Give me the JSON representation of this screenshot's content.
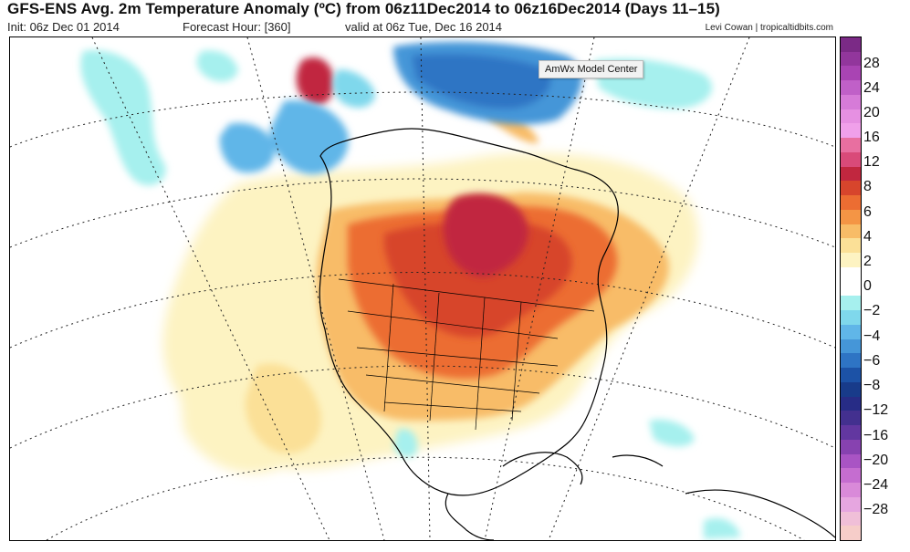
{
  "header": {
    "title": "GFS-ENS Avg. 2m Temperature Anomaly (ºC) from 06z11Dec2014 to 06z16Dec2014 (Days 11–15)",
    "init": "Init: 06z Dec 01 2014",
    "forecast_hour": "Forecast Hour: [360]",
    "valid": "valid at 06z Tue, Dec 16 2014",
    "credit": "Levi Cowan | tropicaltidbits.com"
  },
  "tooltip": {
    "text": "AmWx Model Center"
  },
  "map": {
    "region": "North America",
    "variable": "2m temperature anomaly",
    "units": "ºC"
  },
  "colorbar": {
    "labels": [
      "28",
      "24",
      "20",
      "16",
      "12",
      "8",
      "6",
      "4",
      "2",
      "0",
      "−2",
      "−4",
      "−6",
      "−8",
      "−12",
      "−16",
      "−20",
      "−24",
      "−28"
    ],
    "colors": [
      "#7b2a86",
      "#92369c",
      "#a944b3",
      "#c060c8",
      "#d67bd8",
      "#e690e2",
      "#f0a0ea",
      "#e86fa0",
      "#d94a79",
      "#c1273f",
      "#d7452c",
      "#ec6d32",
      "#f49545",
      "#f8bc67",
      "#fbe097",
      "#fdf3c2",
      "#ffffff",
      "#ffffff",
      "#a6f0ee",
      "#7fd8ec",
      "#60b6e8",
      "#4596d8",
      "#2e74c4",
      "#1c52a6",
      "#183b8a",
      "#272c86",
      "#43308f",
      "#6237a0",
      "#8742b0",
      "#a954c4",
      "#c56dd0",
      "#d98ad9",
      "#e6a6e0",
      "#f0bfd8",
      "#f6cdc9"
    ]
  },
  "regions": [
    {
      "name": "warm-core-central-canada",
      "anomaly": "8-12",
      "color": "#c1273f"
    },
    {
      "name": "cold-greenland",
      "anomaly": "-2 to -6",
      "color": "#4596d8"
    },
    {
      "name": "cold-alaska",
      "anomaly": "-2 to -6",
      "color": "#4596d8"
    },
    {
      "name": "warm-alaska-north-slope",
      "anomaly": "8-12",
      "color": "#c1273f"
    }
  ]
}
